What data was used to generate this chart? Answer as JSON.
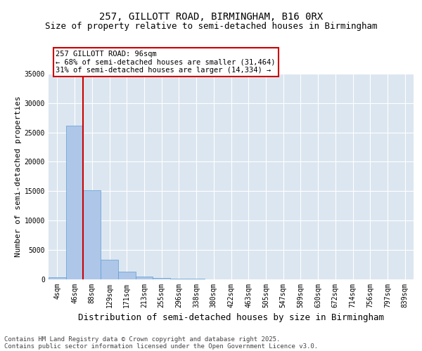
{
  "title1": "257, GILLOTT ROAD, BIRMINGHAM, B16 0RX",
  "title2": "Size of property relative to semi-detached houses in Birmingham",
  "xlabel": "Distribution of semi-detached houses by size in Birmingham",
  "ylabel": "Number of semi-detached properties",
  "categories": [
    "4sqm",
    "46sqm",
    "88sqm",
    "129sqm",
    "171sqm",
    "213sqm",
    "255sqm",
    "296sqm",
    "338sqm",
    "380sqm",
    "422sqm",
    "463sqm",
    "505sqm",
    "547sqm",
    "589sqm",
    "630sqm",
    "672sqm",
    "714sqm",
    "756sqm",
    "797sqm",
    "839sqm"
  ],
  "values": [
    350,
    26100,
    15100,
    3300,
    1200,
    450,
    200,
    80,
    30,
    0,
    0,
    0,
    0,
    0,
    0,
    0,
    0,
    0,
    0,
    0,
    0
  ],
  "bar_color": "#aec6e8",
  "bar_edgecolor": "#5a9fd4",
  "vline_color": "#cc0000",
  "vline_pos": 1.5,
  "ylim": [
    0,
    35000
  ],
  "yticks": [
    0,
    5000,
    10000,
    15000,
    20000,
    25000,
    30000,
    35000
  ],
  "annotation_title": "257 GILLOTT ROAD: 96sqm",
  "annotation_line1": "← 68% of semi-detached houses are smaller (31,464)",
  "annotation_line2": "31% of semi-detached houses are larger (14,334) →",
  "annotation_box_color": "#cc0000",
  "background_color": "#dce6f0",
  "grid_color": "#ffffff",
  "footer1": "Contains HM Land Registry data © Crown copyright and database right 2025.",
  "footer2": "Contains public sector information licensed under the Open Government Licence v3.0.",
  "title_fontsize": 10,
  "subtitle_fontsize": 9,
  "xlabel_fontsize": 9,
  "ylabel_fontsize": 8,
  "tick_fontsize": 7,
  "annot_fontsize": 7.5,
  "footer_fontsize": 6.5
}
